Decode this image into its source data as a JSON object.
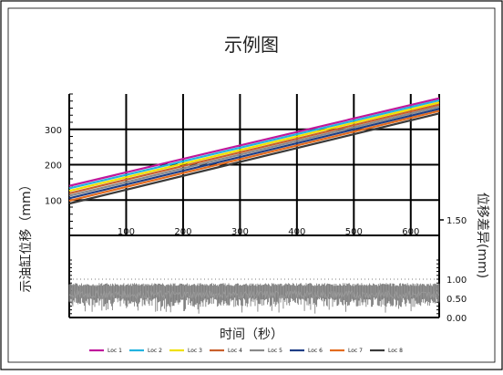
{
  "chart_data": [
    {
      "type": "line",
      "title": "示例图",
      "xlabel": "时间（秒）",
      "ylabel": "示油缸位移（mm）",
      "xlim": [
        0,
        650
      ],
      "ylim": [
        0,
        400
      ],
      "x_ticks": [
        100,
        200,
        300,
        400,
        500,
        600
      ],
      "y_ticks": [
        100,
        200,
        300
      ],
      "grid": true,
      "legend_position": "bottom",
      "series": [
        {
          "name": "Loc 1",
          "color": "#c0189c",
          "x": [
            0,
            650
          ],
          "y": [
            140,
            388
          ]
        },
        {
          "name": "Loc 2",
          "color": "#23b3e0",
          "x": [
            0,
            650
          ],
          "y": [
            133,
            382
          ]
        },
        {
          "name": "Loc 3",
          "color": "#f0e000",
          "x": [
            0,
            650
          ],
          "y": [
            126,
            376
          ]
        },
        {
          "name": "Loc 4",
          "color": "#c9602c",
          "x": [
            0,
            650
          ],
          "y": [
            119,
            370
          ]
        },
        {
          "name": "Loc 5",
          "color": "#8a8a8a",
          "x": [
            0,
            650
          ],
          "y": [
            112,
            364
          ]
        },
        {
          "name": "Loc 6",
          "color": "#1f3f86",
          "x": [
            0,
            650
          ],
          "y": [
            105,
            358
          ]
        },
        {
          "name": "Loc 7",
          "color": "#e36c1f",
          "x": [
            0,
            650
          ],
          "y": [
            98,
            352
          ]
        },
        {
          "name": "Loc 8",
          "color": "#3a3a3a",
          "x": [
            0,
            650
          ],
          "y": [
            90,
            345
          ]
        }
      ]
    },
    {
      "type": "line",
      "xlabel": "时间（秒）",
      "ylabel": "位移差异(mm)",
      "ylabel_position": "right",
      "xlim": [
        0,
        650
      ],
      "ylim": [
        0,
        1.5
      ],
      "y_ticks": [
        "0.00",
        "0.50",
        "1.00",
        "1.50"
      ],
      "series": [
        {
          "name": "位移差异",
          "color": "#808080",
          "mean": 0.6,
          "max": 0.9,
          "min": 0.1,
          "typical_low": 0.4
        }
      ]
    }
  ]
}
